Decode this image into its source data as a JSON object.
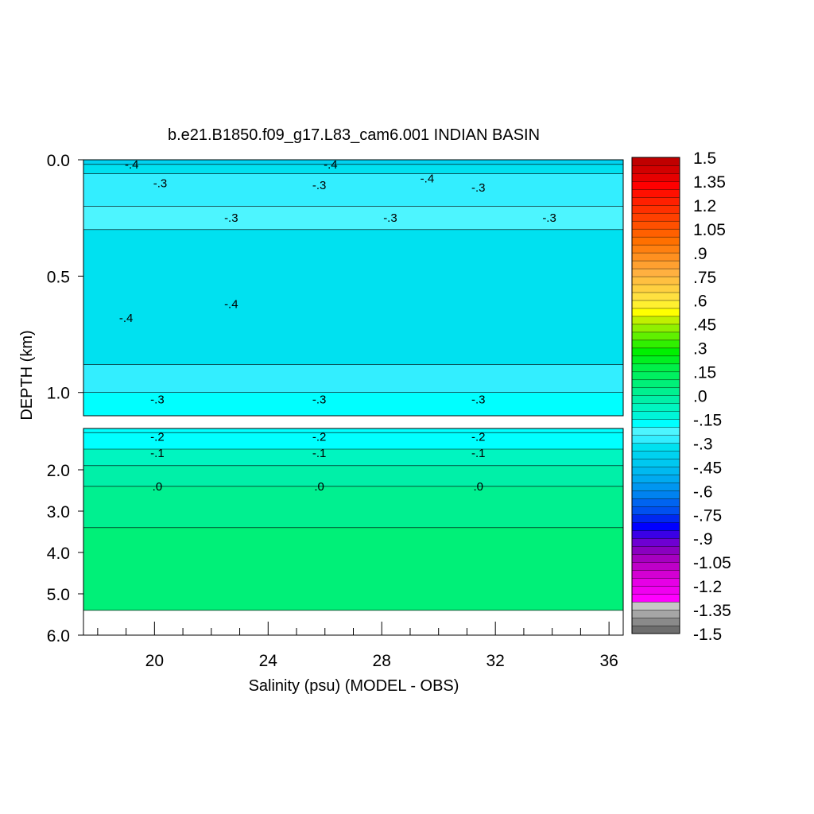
{
  "chart_data": {
    "type": "heatmap",
    "title": "b.e21.B1850.f09_g17.L83_cam6.001 INDIAN BASIN",
    "xlabel": "Salinity (psu) (MODEL - OBS)",
    "ylabel": "DEPTH (km)",
    "xlim": [
      17.5,
      36.5
    ],
    "x_ticks": [
      "20",
      "24",
      "28",
      "32",
      "36"
    ],
    "upper_panel": {
      "ylim": [
        0.0,
        1.1
      ],
      "y_ticks": [
        "0.0",
        "0.5",
        "1.0"
      ]
    },
    "lower_panel": {
      "ylim": [
        1.0,
        6.0
      ],
      "y_ticks": [
        "2.0",
        "3.0",
        "4.0",
        "5.0",
        "6.0"
      ]
    },
    "colorbar": {
      "min": -1.5,
      "max": 1.5,
      "step": 0.05,
      "labels": [
        "1.5",
        "1.35",
        "1.2",
        "1.05",
        ".9",
        ".75",
        ".6",
        ".45",
        ".3",
        ".15",
        ".0",
        "-.15",
        "-.3",
        "-.45",
        "-.6",
        "-.75",
        "-.9",
        "-1.05",
        "-1.2",
        "-1.35",
        "-1.5"
      ]
    },
    "fields": [
      {
        "depth_range": [
          0.0,
          0.02
        ],
        "value": -0.4
      },
      {
        "depth_range": [
          0.02,
          0.06
        ],
        "value": -0.35
      },
      {
        "depth_range": [
          0.06,
          0.2
        ],
        "value": -0.3
      },
      {
        "depth_range": [
          0.2,
          0.3
        ],
        "value": -0.25
      },
      {
        "depth_range": [
          0.3,
          0.88
        ],
        "value": -0.35
      },
      {
        "depth_range": [
          0.88,
          1.0
        ],
        "value": -0.3
      },
      {
        "depth_range": [
          1.0,
          1.1
        ],
        "value": -0.25
      },
      {
        "depth_range": [
          1.0,
          1.5
        ],
        "value": -0.2
      },
      {
        "depth_range": [
          1.5,
          1.9
        ],
        "value": -0.1
      },
      {
        "depth_range": [
          1.9,
          2.4
        ],
        "value": -0.05
      },
      {
        "depth_range": [
          2.4,
          3.4
        ],
        "value": 0.0
      },
      {
        "depth_range": [
          3.4,
          5.4
        ],
        "value": 0.05
      }
    ],
    "contour_labels": {
      "upper": [
        {
          "text": "-.4",
          "x": 19.2,
          "depth": 0.02
        },
        {
          "text": "-.4",
          "x": 26.2,
          "depth": 0.02
        },
        {
          "text": "-.4",
          "x": 29.6,
          "depth": 0.08
        },
        {
          "text": "-.3",
          "x": 20.2,
          "depth": 0.1
        },
        {
          "text": "-.3",
          "x": 25.8,
          "depth": 0.11
        },
        {
          "text": "-.3",
          "x": 31.4,
          "depth": 0.12
        },
        {
          "text": "-.3",
          "x": 22.7,
          "depth": 0.25
        },
        {
          "text": "-.3",
          "x": 28.3,
          "depth": 0.25
        },
        {
          "text": "-.3",
          "x": 33.9,
          "depth": 0.25
        },
        {
          "text": "-.4",
          "x": 22.7,
          "depth": 0.62
        },
        {
          "text": "-.4",
          "x": 19.0,
          "depth": 0.68
        },
        {
          "text": "-.3",
          "x": 20.1,
          "depth": 1.03
        },
        {
          "text": "-.3",
          "x": 25.8,
          "depth": 1.03
        },
        {
          "text": "-.3",
          "x": 31.4,
          "depth": 1.03
        }
      ],
      "lower": [
        {
          "text": "-.2",
          "x": 20.1,
          "depth": 1.2
        },
        {
          "text": "-.2",
          "x": 25.8,
          "depth": 1.2
        },
        {
          "text": "-.2",
          "x": 31.4,
          "depth": 1.2
        },
        {
          "text": "-.1",
          "x": 20.1,
          "depth": 1.6
        },
        {
          "text": "-.1",
          "x": 25.8,
          "depth": 1.6
        },
        {
          "text": "-.1",
          "x": 31.4,
          "depth": 1.6
        },
        {
          "text": ".0",
          "x": 20.1,
          "depth": 2.4
        },
        {
          "text": ".0",
          "x": 25.8,
          "depth": 2.4
        },
        {
          "text": ".0",
          "x": 31.4,
          "depth": 2.4
        }
      ]
    }
  }
}
